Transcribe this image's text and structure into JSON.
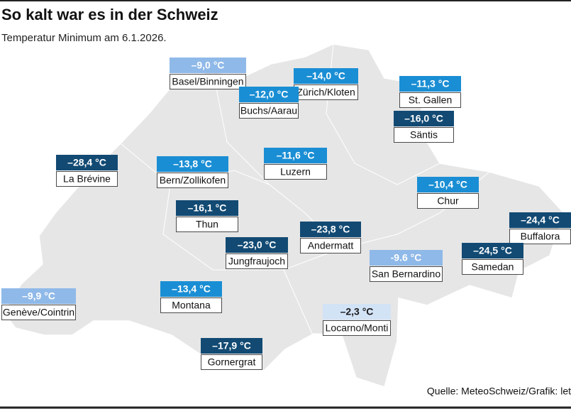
{
  "header": {
    "title": "So kalt war es in der Schweiz",
    "subtitle": "Temperatur Minimum am 6.1.2026."
  },
  "stations": [
    {
      "temperature": "–9,0 °C",
      "name": "Basel/Binningen",
      "color": "#8fb9e8",
      "text_color": "#ffffff"
    },
    {
      "temperature": "–14,0 °C",
      "name": "Zürich/Kloten",
      "color": "#1a8ed4",
      "text_color": "#ffffff"
    },
    {
      "temperature": "–12,0 °C",
      "name": "Buchs/Aarau",
      "color": "#1a8ed4",
      "text_color": "#ffffff"
    },
    {
      "temperature": "–11,3 °C",
      "name": "St. Gallen",
      "color": "#1a8ed4",
      "text_color": "#ffffff"
    },
    {
      "temperature": "–16,0 °C",
      "name": "Säntis",
      "color": "#124a73",
      "text_color": "#ffffff"
    },
    {
      "temperature": "–28,4 °C",
      "name": "La Brévine",
      "color": "#124a73",
      "text_color": "#ffffff"
    },
    {
      "temperature": "–13,8 °C",
      "name": "Bern/Zollikofen",
      "color": "#1a8ed4",
      "text_color": "#ffffff"
    },
    {
      "temperature": "–11,6 °C",
      "name": "Luzern",
      "color": "#1a8ed4",
      "text_color": "#ffffff"
    },
    {
      "temperature": "–10,4 °C",
      "name": "Chur",
      "color": "#1a8ed4",
      "text_color": "#ffffff"
    },
    {
      "temperature": "–16,1 °C",
      "name": "Thun",
      "color": "#124a73",
      "text_color": "#ffffff"
    },
    {
      "temperature": "–23,8 °C",
      "name": "Andermatt",
      "color": "#124a73",
      "text_color": "#ffffff"
    },
    {
      "temperature": "–23,0 °C",
      "name": "Jungfraujoch",
      "color": "#124a73",
      "text_color": "#ffffff"
    },
    {
      "temperature": "–24,4 °C",
      "name": "Buffalora",
      "color": "#124a73",
      "text_color": "#ffffff"
    },
    {
      "temperature": "–24,5 °C",
      "name": "Samedan",
      "color": "#124a73",
      "text_color": "#ffffff"
    },
    {
      "temperature": "-9.6 °C",
      "name": "San Bernardino",
      "color": "#8fb9e8",
      "text_color": "#ffffff"
    },
    {
      "temperature": "–9,9 °C",
      "name": "Genève/Cointrin",
      "color": "#8fb9e8",
      "text_color": "#ffffff"
    },
    {
      "temperature": "–13,4 °C",
      "name": "Montana",
      "color": "#1a8ed4",
      "text_color": "#ffffff"
    },
    {
      "temperature": "–2,3 °C",
      "name": "Locarno/Monti",
      "color": "#d3e3f6",
      "text_color": "#1a1a1a"
    },
    {
      "temperature": "–17,9 °C",
      "name": "Gornergrat",
      "color": "#124a73",
      "text_color": "#ffffff"
    }
  ],
  "source": "Quelle: MeteoSchweiz/Grafik: let"
}
